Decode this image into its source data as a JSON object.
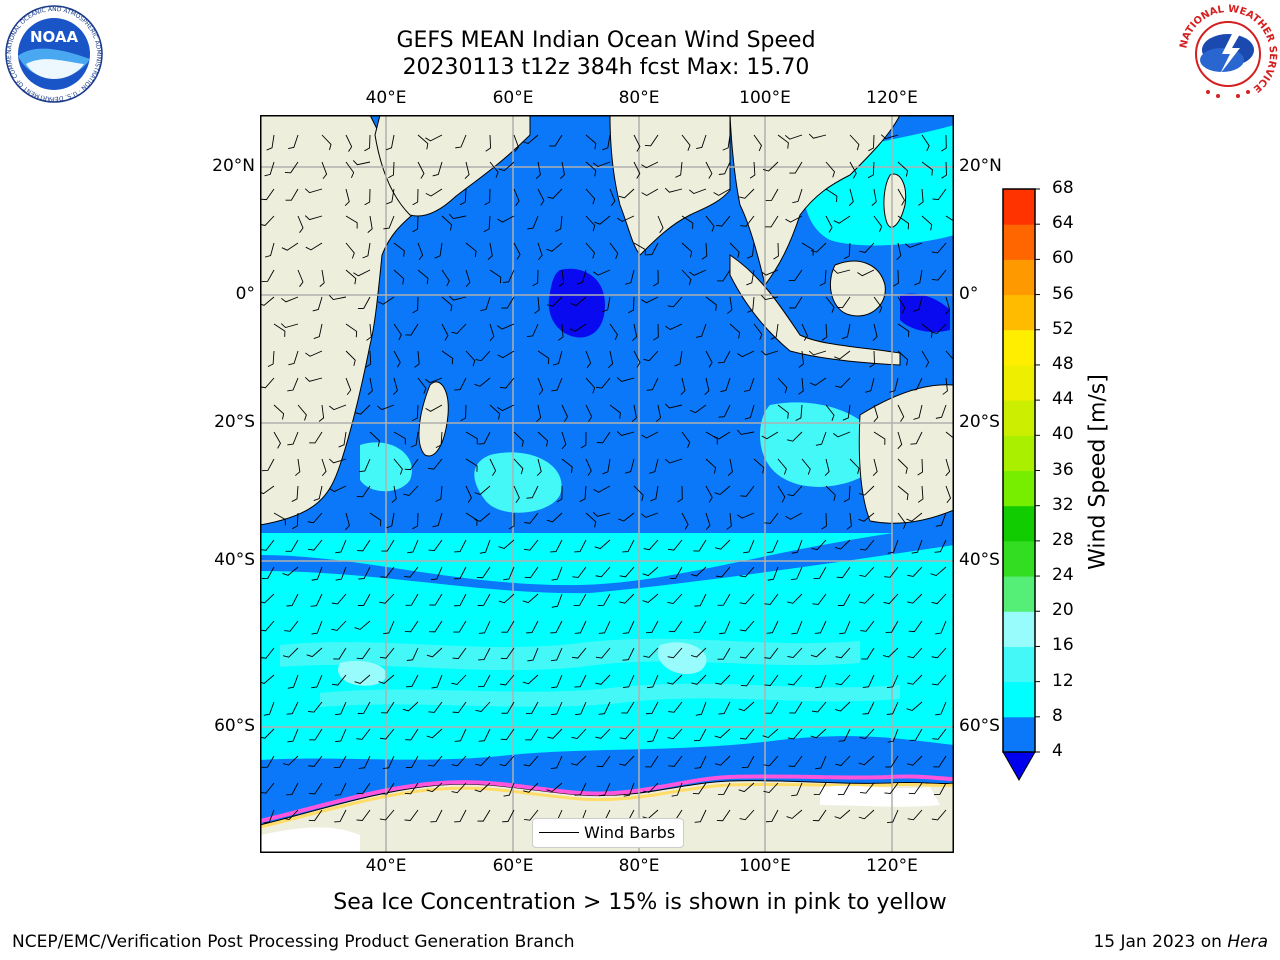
{
  "title": {
    "line1": "GEFS MEAN Indian Ocean Wind Speed",
    "line2": "20230113 t12z 384h fcst   Max: 15.70"
  },
  "map": {
    "lon_ticks_top": [
      "40°E",
      "60°E",
      "80°E",
      "100°E",
      "120°E"
    ],
    "lon_ticks_bottom": [
      "40°E",
      "60°E",
      "80°E",
      "100°E",
      "120°E"
    ],
    "lat_ticks_left": [
      "20°N",
      "0°",
      "20°S",
      "40°S",
      "60°S"
    ],
    "lat_ticks_right": [
      "20°N",
      "0°",
      "20°S",
      "40°S",
      "60°S"
    ],
    "legend_label": "Wind Barbs",
    "gridlines": true,
    "colors": {
      "land": "#eeeedd",
      "ocean_4_8": "#0a78f8",
      "ocean_8_12": "#00ffff",
      "ocean_12_16": "#44f8f8",
      "ocean_16_20": "#99fcfc",
      "ocean_below_4": "#0a0af0",
      "sea_ice_pink": "#ff55dd",
      "sea_ice_yellow": "#ffdd66"
    }
  },
  "colorbar": {
    "label": "Wind Speed [m/s]",
    "ticks": [
      "4",
      "8",
      "12",
      "16",
      "20",
      "24",
      "28",
      "32",
      "36",
      "40",
      "44",
      "48",
      "52",
      "56",
      "60",
      "64",
      "68"
    ],
    "colors": [
      "#0a78f8",
      "#00ffff",
      "#44f8f8",
      "#99fcfc",
      "#55ee77",
      "#33dd22",
      "#11cc00",
      "#77ee00",
      "#aaee00",
      "#ccee00",
      "#eeee00",
      "#ffee00",
      "#ffbb00",
      "#ff9900",
      "#ff6600",
      "#ff3300",
      "#ff0000"
    ],
    "extend_color": "#0000ee"
  },
  "caption": "Sea Ice Concentration > 15% is shown in pink to yellow",
  "footer": {
    "left": "NCEP/EMC/Verification Post Processing Product Generation Branch",
    "right_prefix": "15 Jan 2023 on ",
    "right_machine": "Hera"
  },
  "logos": {
    "noaa_text": "NOAA",
    "noaa_ring": "NATIONAL OCEANIC AND ATMOSPHERIC ADMINISTRATION · U.S. DEPARTMENT OF COMMERCE ·",
    "nws_ring": "NATIONAL WEATHER SERVICE"
  }
}
